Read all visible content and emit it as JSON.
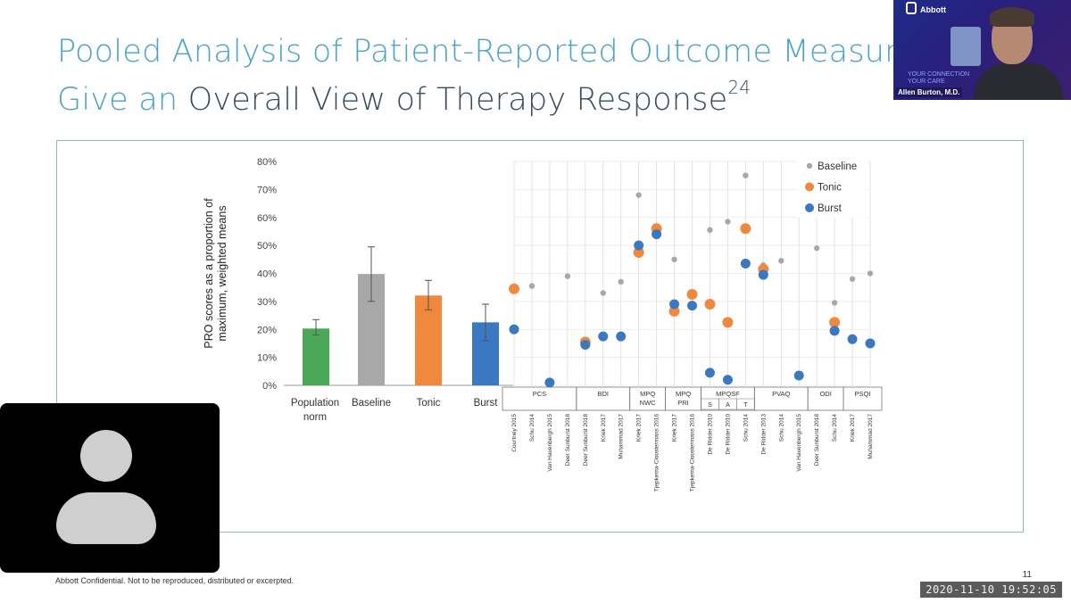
{
  "slide": {
    "title_line1": "Pooled Analysis of Patient-Reported Outcome Measures",
    "title_line2_prefix": "Give an ",
    "title_line2_dark": "Overall View of Therapy Response",
    "title_sup": "24",
    "footer": "Abbott Confidential. Not to be reproduced, distributed or excerpted.",
    "page_number": "11",
    "colors": {
      "title_accent": "#4aa3c9",
      "green": "#4aa858",
      "gray": "#a8a8a8",
      "orange": "#f0883e",
      "blue": "#3a78c2"
    }
  },
  "meeting": {
    "timestamp": "2020-11-10 19:52:05",
    "presenter_name": "Allen Burton, M.D.",
    "presenter_brand": "Abbott",
    "presenter_tagline_1": "YOUR CONNECTION",
    "presenter_tagline_2": "YOUR CARE",
    "video_tile_icon": "person-placeholder-icon"
  },
  "chart_data": [
    {
      "type": "bar",
      "ylabel": "PRO scores as a proportion of maximum, weighted means",
      "yticks": [
        "0%",
        "10%",
        "20%",
        "30%",
        "40%",
        "50%",
        "60%",
        "70%",
        "80%"
      ],
      "ylim": [
        0,
        80
      ],
      "categories": [
        "Population norm",
        "Baseline",
        "Tonic",
        "Burst"
      ],
      "values": [
        20.3,
        39.8,
        32.1,
        22.5
      ],
      "errors": [
        [
          18,
          23.5
        ],
        [
          30,
          49.5
        ],
        [
          27,
          37.5
        ],
        [
          16,
          29
        ]
      ],
      "colors": [
        "#4aa858",
        "#a8a8a8",
        "#f0883e",
        "#3a78c2"
      ]
    },
    {
      "type": "scatter",
      "ylim": [
        0,
        80
      ],
      "legend": [
        "Baseline",
        "Tonic",
        "Burst"
      ],
      "legend_position": "top-right",
      "studies": [
        "Courtney 2015",
        "Schu 2014",
        "Van Havenbergh 2015",
        "Deer Sunburst 2018",
        "Deer Sunburst 2018",
        "Kriek 2017",
        "Muhammad 2017",
        "Kriek 2017",
        "Tjepkema-Cloostermans 2016",
        "Kriek 2017",
        "Tjepkema-Cloostermans 2016",
        "De Ridder 2010",
        "De Ridder 2010",
        "Schu 2014",
        "De Ridder 2013",
        "Schu 2014",
        "Van Havenbergh 2015",
        "Deer Sunburst 2018",
        "Schu 2014",
        "Kriek 2017",
        "Muhammad 2017"
      ],
      "groups": [
        {
          "label": "PCS",
          "span": 4
        },
        {
          "label": "BDI",
          "span": 3
        },
        {
          "label": "MPQ NWC",
          "span": 2
        },
        {
          "label": "MPQ PRI",
          "span": 2
        },
        {
          "label": "MPQSF",
          "span": 3
        },
        {
          "label": "PVAQ",
          "span": 3
        },
        {
          "label": "ODI",
          "span": 2
        },
        {
          "label": "PSQI",
          "span": 2
        }
      ],
      "mpqsf_sub": [
        "S",
        "A",
        "T"
      ],
      "series": [
        {
          "name": "Baseline",
          "values": [
            null,
            35.5,
            null,
            39,
            null,
            33,
            37,
            68,
            null,
            45,
            null,
            55.5,
            58.5,
            75,
            43,
            44.5,
            null,
            49,
            29.5,
            38,
            40
          ]
        },
        {
          "name": "Tonic",
          "values": [
            34.5,
            null,
            null,
            null,
            15.5,
            null,
            null,
            47.5,
            56,
            26.5,
            32.5,
            29,
            22.5,
            56,
            41.5,
            null,
            null,
            null,
            22.5,
            null,
            null
          ]
        },
        {
          "name": "Burst",
          "values": [
            20,
            null,
            1,
            null,
            14.5,
            17.5,
            17.5,
            50,
            54,
            29,
            28.5,
            4.5,
            2,
            43.5,
            39.5,
            null,
            3.5,
            null,
            19.5,
            16.5,
            15
          ]
        }
      ]
    }
  ]
}
